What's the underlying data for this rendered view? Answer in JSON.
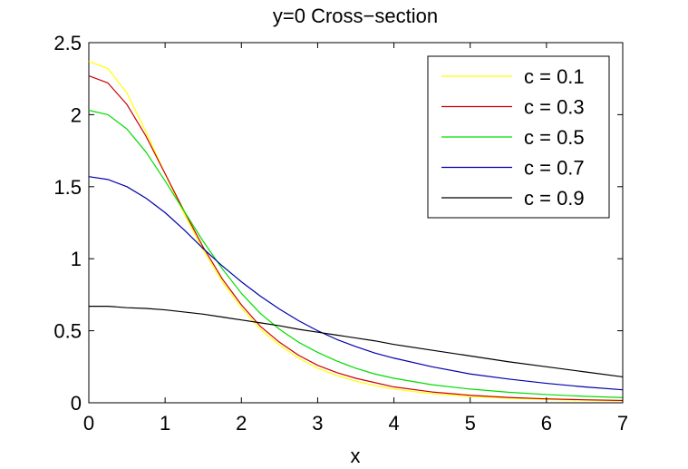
{
  "chart_data": {
    "type": "line",
    "title": "y=0 Cross−section",
    "xlabel": "x",
    "ylabel": "",
    "xlim": [
      0,
      7
    ],
    "ylim": [
      0,
      2.5
    ],
    "xticks": [
      "0",
      "1",
      "2",
      "3",
      "4",
      "5",
      "6",
      "7"
    ],
    "yticks": [
      "0",
      "0.5",
      "1",
      "1.5",
      "2",
      "2.5"
    ],
    "grid": false,
    "legend_position": "top-right",
    "x": [
      0,
      0.25,
      0.5,
      0.75,
      1,
      1.25,
      1.5,
      1.75,
      2,
      2.25,
      2.5,
      2.75,
      3,
      3.25,
      3.5,
      3.75,
      4,
      4.5,
      5,
      5.5,
      6,
      6.5,
      7
    ],
    "series": [
      {
        "name": "c = 0.1",
        "color": "#ffff00",
        "values": [
          2.37,
          2.32,
          2.15,
          1.88,
          1.59,
          1.31,
          1.06,
          0.84,
          0.66,
          0.51,
          0.4,
          0.31,
          0.24,
          0.19,
          0.15,
          0.12,
          0.095,
          0.063,
          0.043,
          0.031,
          0.023,
          0.017,
          0.013
        ]
      },
      {
        "name": "c = 0.3",
        "color": "#cc0000",
        "values": [
          2.27,
          2.22,
          2.07,
          1.85,
          1.59,
          1.33,
          1.08,
          0.86,
          0.68,
          0.53,
          0.42,
          0.33,
          0.26,
          0.21,
          0.17,
          0.14,
          0.11,
          0.075,
          0.052,
          0.037,
          0.027,
          0.021,
          0.016
        ]
      },
      {
        "name": "c = 0.5",
        "color": "#00dd00",
        "values": [
          2.03,
          2.0,
          1.9,
          1.74,
          1.54,
          1.33,
          1.12,
          0.93,
          0.76,
          0.62,
          0.51,
          0.42,
          0.35,
          0.29,
          0.24,
          0.2,
          0.17,
          0.125,
          0.095,
          0.073,
          0.057,
          0.045,
          0.036
        ]
      },
      {
        "name": "c = 0.7",
        "color": "#0000aa",
        "values": [
          1.57,
          1.55,
          1.5,
          1.42,
          1.32,
          1.2,
          1.07,
          0.95,
          0.84,
          0.74,
          0.65,
          0.57,
          0.5,
          0.44,
          0.39,
          0.345,
          0.31,
          0.25,
          0.2,
          0.165,
          0.135,
          0.11,
          0.09
        ]
      },
      {
        "name": "c = 0.9",
        "color": "#000000",
        "values": [
          0.67,
          0.67,
          0.66,
          0.655,
          0.645,
          0.63,
          0.615,
          0.595,
          0.575,
          0.555,
          0.535,
          0.51,
          0.49,
          0.47,
          0.45,
          0.43,
          0.405,
          0.365,
          0.325,
          0.285,
          0.25,
          0.215,
          0.18
        ]
      }
    ]
  }
}
